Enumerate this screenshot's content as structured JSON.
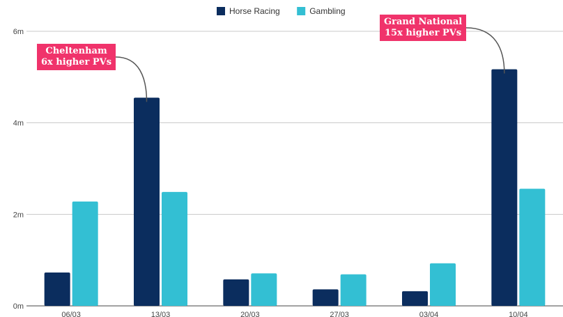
{
  "chart_data": {
    "type": "bar",
    "categories": [
      "06/03",
      "13/03",
      "20/03",
      "27/03",
      "03/04",
      "10/04"
    ],
    "series": [
      {
        "name": "Horse Racing",
        "color": "#0b2d5e",
        "values": [
          0.73,
          4.55,
          0.58,
          0.36,
          0.32,
          5.17
        ]
      },
      {
        "name": "Gambling",
        "color": "#33bfd3",
        "values": [
          2.28,
          2.49,
          0.71,
          0.69,
          0.93,
          2.56
        ]
      }
    ],
    "yticks": [
      {
        "value": 0,
        "label": "0m"
      },
      {
        "value": 2,
        "label": "2m"
      },
      {
        "value": 4,
        "label": "4m"
      },
      {
        "value": 6,
        "label": "6m"
      }
    ],
    "ylim": [
      0,
      6
    ],
    "grid": true,
    "legend_position": "top-center",
    "annotations": [
      {
        "category": "13/03",
        "series": "Horse Racing",
        "line1": "Cheltenham",
        "line2": "6x higher PVs",
        "color": "#f0336b"
      },
      {
        "category": "10/04",
        "series": "Horse Racing",
        "line1": "Grand National",
        "line2": "15x higher PVs",
        "color": "#f0336b"
      }
    ]
  }
}
